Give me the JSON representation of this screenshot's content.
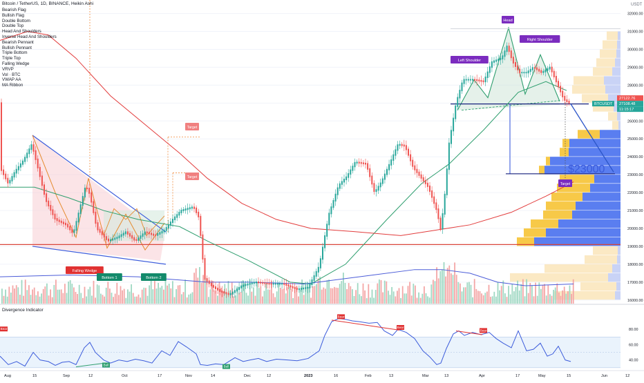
{
  "chart": {
    "title": "Bitcoin / TetherUS, 1D, BINANCE, Heikin Ashi",
    "indicators": [
      "Bearish Flag",
      "Bullish Flag",
      "Double Bottom",
      "Double Top",
      "Head And Shoulders",
      "Inverse Head And Shoulders",
      "Bearish Pennant",
      "Bullish Pennant",
      "Triple Bottom",
      "Triple Top",
      "Falling Wedge",
      "VRVP",
      "Vol · BTC",
      "VWAP AA",
      "MA Ribbon"
    ],
    "currency": "USDT",
    "oscillator_title": "Divergence Indicator"
  },
  "chart_data": [
    {
      "type": "candlestick",
      "title": "Bitcoin / TetherUS, 1D, BINANCE, Heikin Ashi",
      "x_ticks": [
        "Aug",
        "15",
        "Sep",
        "12",
        "Oct",
        "17",
        "Nov",
        "14",
        "Dec",
        "12",
        "2023",
        "16",
        "Feb",
        "13",
        "Mar",
        "13",
        "Apr",
        "17",
        "May",
        "15",
        "Jun",
        "12"
      ],
      "y_ticks": [
        32000,
        31000,
        30000,
        29000,
        28000,
        27000,
        26000,
        25000,
        24000,
        23000,
        22000,
        21000,
        20000,
        19000,
        18000,
        17000,
        16000
      ],
      "ylim": [
        15800,
        32600
      ],
      "price_path": [
        [
          0,
          23400
        ],
        [
          12,
          22500
        ],
        [
          22,
          23200
        ],
        [
          34,
          23800
        ],
        [
          46,
          24700
        ],
        [
          56,
          23200
        ],
        [
          66,
          21600
        ],
        [
          80,
          20500
        ],
        [
          96,
          20200
        ],
        [
          106,
          19700
        ],
        [
          116,
          21200
        ],
        [
          124,
          22400
        ],
        [
          130,
          21900
        ],
        [
          140,
          20000
        ],
        [
          156,
          19300
        ],
        [
          170,
          19500
        ],
        [
          182,
          19800
        ],
        [
          196,
          19300
        ],
        [
          210,
          19800
        ],
        [
          224,
          19600
        ],
        [
          238,
          19900
        ],
        [
          250,
          20500
        ],
        [
          262,
          21000
        ],
        [
          280,
          21200
        ],
        [
          288,
          20600
        ],
        [
          296,
          17200
        ],
        [
          306,
          16800
        ],
        [
          318,
          16500
        ],
        [
          332,
          16300
        ],
        [
          350,
          16800
        ],
        [
          370,
          17000
        ],
        [
          390,
          16900
        ],
        [
          410,
          16900
        ],
        [
          430,
          16600
        ],
        [
          446,
          16700
        ],
        [
          462,
          17900
        ],
        [
          476,
          20800
        ],
        [
          490,
          22400
        ],
        [
          502,
          22900
        ],
        [
          514,
          23700
        ],
        [
          530,
          23600
        ],
        [
          542,
          22000
        ],
        [
          552,
          22600
        ],
        [
          566,
          23800
        ],
        [
          576,
          24700
        ],
        [
          586,
          24600
        ],
        [
          598,
          23400
        ],
        [
          610,
          22800
        ],
        [
          620,
          22300
        ],
        [
          632,
          21000
        ],
        [
          638,
          19900
        ],
        [
          644,
          22000
        ],
        [
          650,
          24800
        ],
        [
          660,
          27000
        ],
        [
          670,
          28300
        ],
        [
          686,
          28300
        ],
        [
          700,
          28200
        ],
        [
          712,
          29300
        ],
        [
          726,
          29500
        ],
        [
          734,
          30200
        ],
        [
          742,
          29300
        ],
        [
          752,
          28700
        ],
        [
          762,
          28700
        ],
        [
          772,
          29000
        ],
        [
          784,
          28700
        ],
        [
          796,
          29000
        ],
        [
          806,
          28100
        ],
        [
          816,
          27200
        ],
        [
          824,
          27000
        ]
      ],
      "last_price": 27122.76,
      "price_tags": [
        "27122.76",
        "27108.48",
        "11:15:17"
      ],
      "symbol_tag": "BTCUSDT",
      "ma": [
        {
          "name": "",
          "color": "#2e9e6e",
          "points": [
            [
              0,
              22300
            ],
            [
              50,
              22300
            ],
            [
              100,
              21700
            ],
            [
              150,
              21000
            ],
            [
              200,
              20500
            ],
            [
              260,
              20100
            ],
            [
              300,
              19300
            ],
            [
              360,
              18200
            ],
            [
              420,
              17000
            ],
            [
              450,
              16900
            ],
            [
              500,
              18000
            ],
            [
              560,
              20500
            ],
            [
              610,
              22500
            ],
            [
              650,
              23600
            ],
            [
              700,
              25500
            ],
            [
              750,
              27600
            ],
            [
              790,
              28200
            ],
            [
              820,
              27700
            ]
          ]
        },
        {
          "name": "",
          "color": "#e23b3b",
          "points": [
            [
              0,
              30500
            ],
            [
              40,
              31000
            ],
            [
              70,
              30800
            ],
            [
              110,
              29500
            ],
            [
              160,
              27400
            ],
            [
              210,
              25800
            ],
            [
              260,
              24200
            ],
            [
              300,
              22800
            ],
            [
              350,
              21400
            ],
            [
              400,
              20500
            ],
            [
              450,
              20000
            ],
            [
              520,
              19800
            ],
            [
              580,
              19600
            ],
            [
              630,
              19900
            ],
            [
              680,
              20200
            ],
            [
              740,
              20900
            ],
            [
              790,
              21800
            ],
            [
              830,
              22600
            ]
          ]
        },
        {
          "name": "",
          "color": "#4a5bd8",
          "points": [
            [
              0,
              17300
            ],
            [
              100,
              17400
            ],
            [
              200,
              17300
            ],
            [
              300,
              17000
            ],
            [
              360,
              17000
            ],
            [
              440,
              16900
            ],
            [
              480,
              17100
            ],
            [
              540,
              17400
            ],
            [
              600,
              17700
            ],
            [
              640,
              17700
            ],
            [
              680,
              17500
            ],
            [
              720,
              17000
            ],
            [
              760,
              16800
            ],
            [
              830,
              16900
            ]
          ]
        }
      ],
      "patterns": [
        {
          "name": "Falling Wedge",
          "target": "Target"
        },
        {
          "name": "Double Bottom",
          "labels": [
            "Bottom 1",
            "Bottom 2"
          ],
          "target": "Target"
        },
        {
          "name": "Head And Shoulders",
          "labels": [
            "Left Shoulder",
            "Head",
            "Right Shoulder"
          ],
          "target_label": "Target"
        }
      ],
      "big_label": "$23000",
      "support_lines": [
        19100,
        26950
      ],
      "volume_profile": [
        {
          "p": 16000,
          "a": 96,
          "b": 8,
          "dim": true
        },
        {
          "p": 16500,
          "a": 58,
          "b": 6,
          "dim": true
        },
        {
          "p": 17000,
          "a": 160,
          "b": 18,
          "dim": true
        },
        {
          "p": 17500,
          "a": 110,
          "b": 12,
          "dim": true
        },
        {
          "p": 18000,
          "a": 52,
          "b": 5,
          "dim": true
        },
        {
          "p": 18500,
          "a": 40,
          "b": 4,
          "dim": true
        },
        {
          "p": 19000,
          "a": 150,
          "b": 125
        },
        {
          "p": 19500,
          "a": 140,
          "b": 108
        },
        {
          "p": 20000,
          "a": 130,
          "b": 90
        },
        {
          "p": 20500,
          "a": 112,
          "b": 70
        },
        {
          "p": 21000,
          "a": 108,
          "b": 65
        },
        {
          "p": 21500,
          "a": 100,
          "b": 55
        },
        {
          "p": 22000,
          "a": 92,
          "b": 44
        },
        {
          "p": 22500,
          "a": 88,
          "b": 38
        },
        {
          "p": 23000,
          "a": 118,
          "b": 110
        },
        {
          "p": 23500,
          "a": 108,
          "b": 102
        },
        {
          "p": 24000,
          "a": 88,
          "b": 75
        },
        {
          "p": 24500,
          "a": 84,
          "b": 74
        },
        {
          "p": 25000,
          "a": 62,
          "b": 30
        },
        {
          "p": 25500,
          "a": 12,
          "b": 3,
          "dim": true
        },
        {
          "p": 26000,
          "a": 18,
          "b": 5,
          "dim": true
        },
        {
          "p": 26500,
          "a": 40,
          "b": 10,
          "dim": true
        },
        {
          "p": 27000,
          "a": 56,
          "b": 18,
          "dim": true
        },
        {
          "p": 27500,
          "a": 70,
          "b": 22,
          "dim": true
        },
        {
          "p": 28000,
          "a": 68,
          "b": 24,
          "dim": true
        },
        {
          "p": 28500,
          "a": 40,
          "b": 12,
          "dim": true
        },
        {
          "p": 29000,
          "a": 35,
          "b": 8,
          "dim": true
        },
        {
          "p": 29500,
          "a": 30,
          "b": 6,
          "dim": true
        },
        {
          "p": 30000,
          "a": 26,
          "b": 5,
          "dim": true
        },
        {
          "p": 30500,
          "a": 20,
          "b": 4,
          "dim": true
        }
      ]
    },
    {
      "type": "line",
      "title": "Divergence Indicator",
      "y_ticks": [
        80,
        60,
        40
      ],
      "ylim": [
        28,
        100
      ],
      "band": [
        30,
        70
      ],
      "rsi": [
        [
          0,
          45
        ],
        [
          12,
          34
        ],
        [
          24,
          38
        ],
        [
          36,
          32
        ],
        [
          48,
          50
        ],
        [
          58,
          40
        ],
        [
          70,
          38
        ],
        [
          80,
          33
        ],
        [
          90,
          37
        ],
        [
          100,
          38
        ],
        [
          110,
          34
        ],
        [
          122,
          56
        ],
        [
          130,
          63
        ],
        [
          138,
          50
        ],
        [
          150,
          40
        ],
        [
          160,
          36
        ],
        [
          172,
          40
        ],
        [
          184,
          38
        ],
        [
          196,
          41
        ],
        [
          208,
          39
        ],
        [
          220,
          36
        ],
        [
          234,
          52
        ],
        [
          246,
          46
        ],
        [
          258,
          64
        ],
        [
          270,
          57
        ],
        [
          284,
          48
        ],
        [
          290,
          34
        ],
        [
          300,
          33
        ],
        [
          312,
          35
        ],
        [
          324,
          34
        ],
        [
          340,
          43
        ],
        [
          352,
          38
        ],
        [
          362,
          40
        ],
        [
          374,
          42
        ],
        [
          386,
          38
        ],
        [
          400,
          41
        ],
        [
          416,
          40
        ],
        [
          430,
          39
        ],
        [
          446,
          42
        ],
        [
          462,
          52
        ],
        [
          470,
          72
        ],
        [
          480,
          90
        ],
        [
          490,
          94
        ],
        [
          500,
          93
        ],
        [
          510,
          91
        ],
        [
          520,
          90
        ],
        [
          534,
          88
        ],
        [
          546,
          89
        ],
        [
          556,
          78
        ],
        [
          568,
          72
        ],
        [
          576,
          80
        ],
        [
          588,
          76
        ],
        [
          600,
          68
        ],
        [
          612,
          52
        ],
        [
          622,
          44
        ],
        [
          632,
          34
        ],
        [
          638,
          36
        ],
        [
          646,
          55
        ],
        [
          656,
          74
        ],
        [
          664,
          78
        ],
        [
          672,
          72
        ],
        [
          684,
          76
        ],
        [
          696,
          73
        ],
        [
          708,
          76
        ],
        [
          718,
          68
        ],
        [
          728,
          62
        ],
        [
          740,
          56
        ],
        [
          750,
          78
        ],
        [
          762,
          52
        ],
        [
          772,
          54
        ],
        [
          782,
          62
        ],
        [
          792,
          45
        ],
        [
          800,
          48
        ],
        [
          808,
          58
        ],
        [
          818,
          40
        ],
        [
          826,
          38
        ]
      ],
      "signals": [
        {
          "label": "Bear",
          "kind": "bear"
        },
        {
          "label": "Bull",
          "kind": "bull"
        },
        {
          "label": "Bull",
          "kind": "bull"
        },
        {
          "label": "Bear",
          "kind": "bear"
        },
        {
          "label": "Bear",
          "kind": "bear"
        },
        {
          "label": "Bear",
          "kind": "bear"
        }
      ],
      "last_value": 40
    }
  ]
}
